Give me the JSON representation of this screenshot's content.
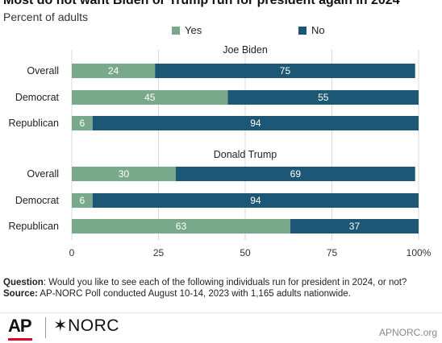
{
  "title": "Most do not want Biden or Trump run for president again in 2024",
  "subtitle": "Percent of adults",
  "legend": {
    "yes": "Yes",
    "no": "No"
  },
  "colors": {
    "yes": "#7aa88a",
    "no": "#1c5775",
    "grid": "#d9d9d9"
  },
  "chart_data": {
    "type": "bar",
    "orientation": "horizontal",
    "stacked": true,
    "title": "Most do not want Biden or Trump run for president again in 2024",
    "subtitle": "Percent of adults",
    "xlim": [
      0,
      100
    ],
    "ticks": [
      "0",
      "25",
      "50",
      "75",
      "100%"
    ],
    "legend_placement": "top",
    "series_names": [
      "Yes",
      "No"
    ],
    "panels": [
      {
        "title": "Joe Biden",
        "rows": [
          {
            "category": "Overall",
            "yes": 24,
            "no": 75
          },
          {
            "category": "Democrat",
            "yes": 45,
            "no": 55
          },
          {
            "category": "Republican",
            "yes": 6,
            "no": 94
          }
        ]
      },
      {
        "title": "Donald Trump",
        "rows": [
          {
            "category": "Overall",
            "yes": 30,
            "no": 69
          },
          {
            "category": "Democrat",
            "yes": 6,
            "no": 94
          },
          {
            "category": "Republican",
            "yes": 63,
            "no": 37
          }
        ]
      }
    ]
  },
  "footnote": {
    "question_label": "Question",
    "question_text": ": Would you like to see each of the following individuals run for president in 2024, or not?",
    "source_label": "Source:",
    "source_text": " AP-NORC Poll conducted August 10-14, 2023 with 1,165 adults nationwide."
  },
  "footer": {
    "logo_ap": "AP",
    "logo_norc": "✶NORC",
    "site": "APNORC.org"
  }
}
